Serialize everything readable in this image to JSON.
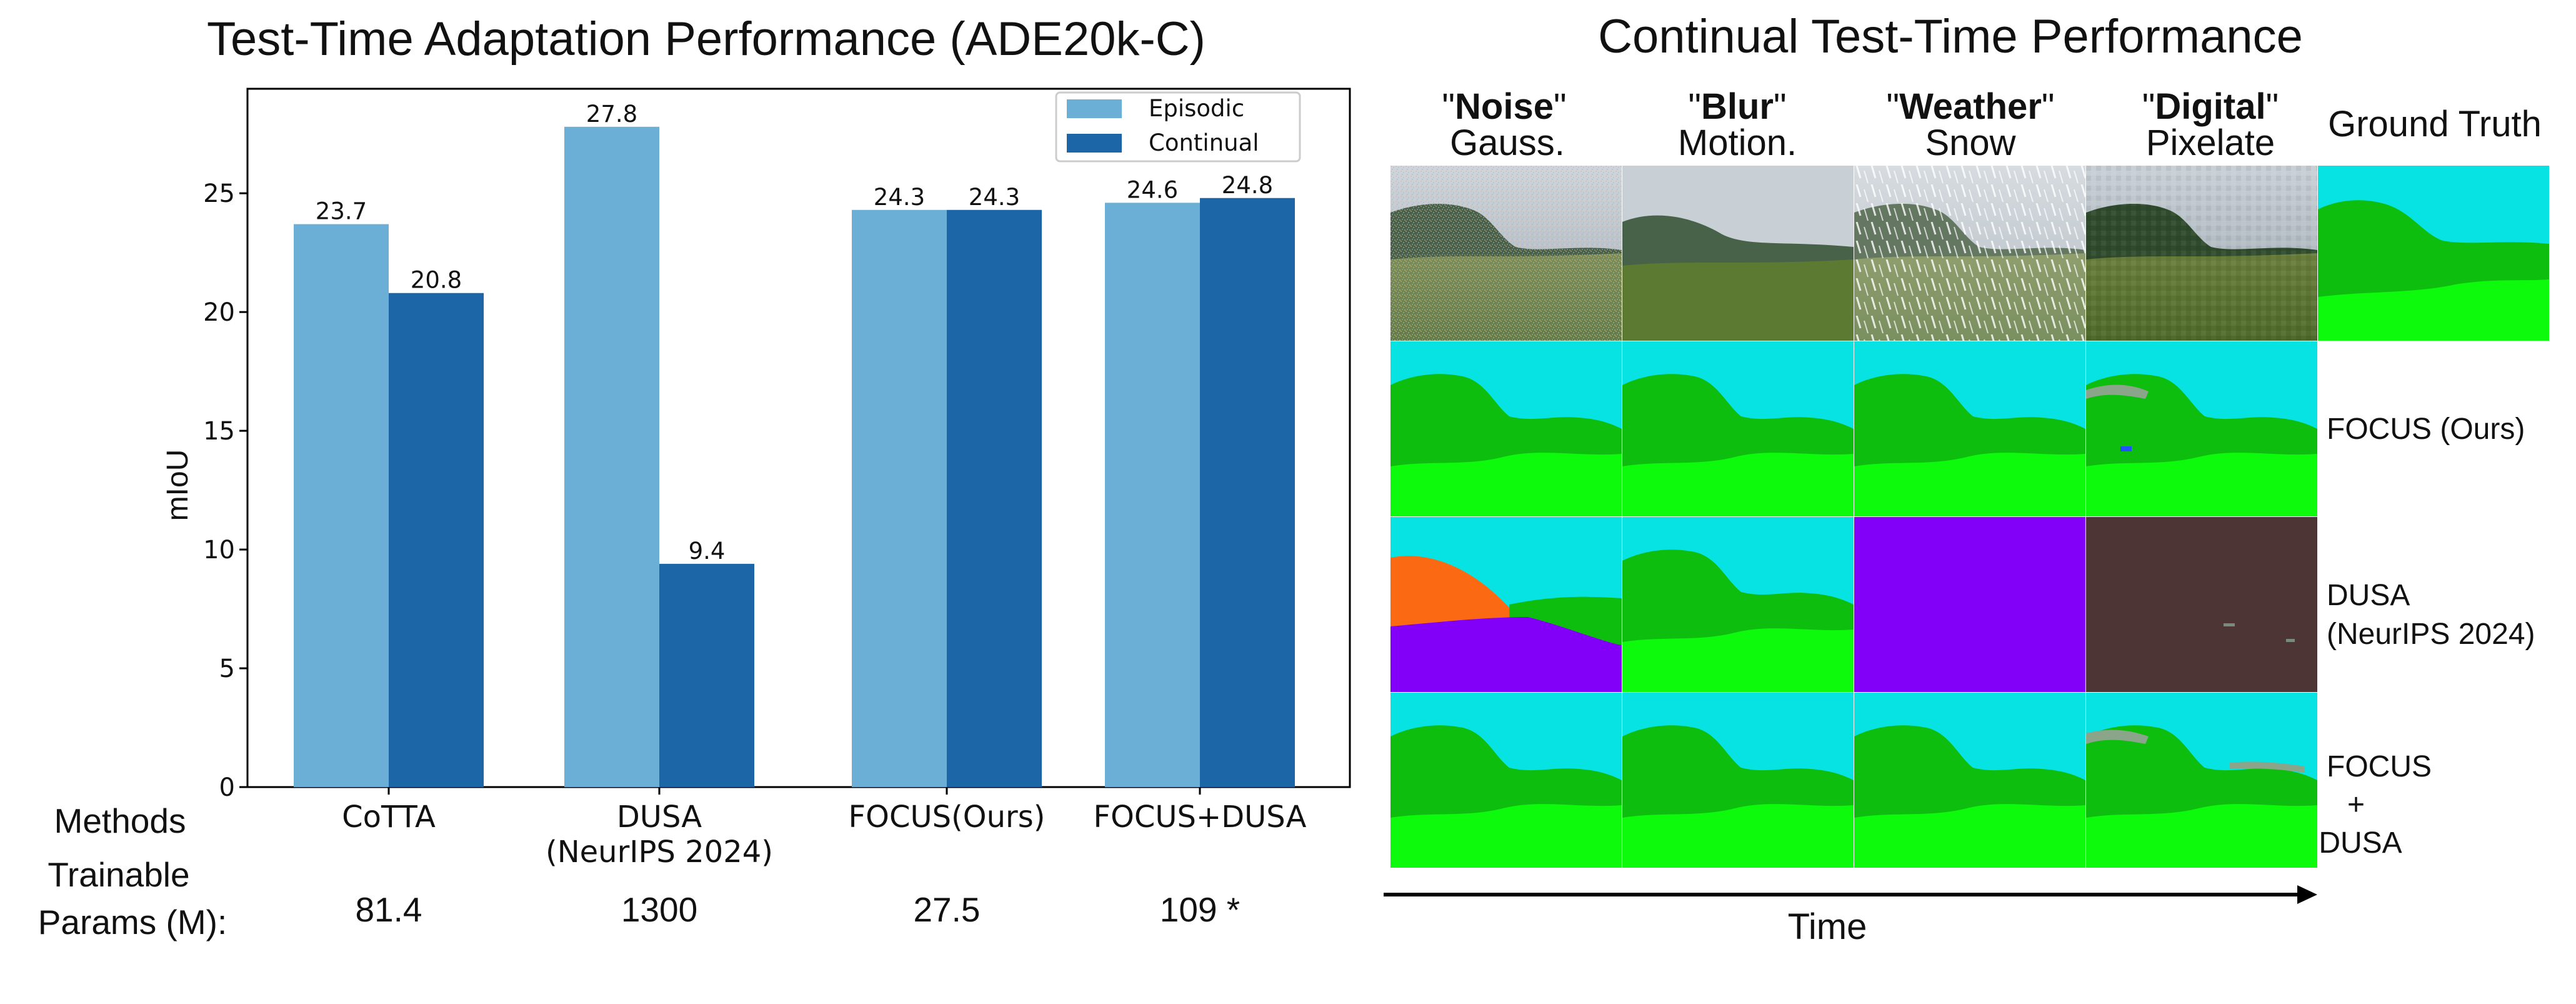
{
  "left_title": "Test-Time Adaptation Performance (ADE20k-C)",
  "right_title": "Continual Test-Time Performance",
  "chart_data": {
    "type": "bar",
    "title": "Test-Time Adaptation Performance (ADE20k-C)",
    "xlabel": "",
    "ylabel": "mIoU",
    "ylim": [
      0,
      29.4
    ],
    "yticks": [
      "0",
      "5",
      "10",
      "15",
      "20",
      "25"
    ],
    "categories": [
      "CoTTA",
      "DUSA\n(NeurIPS 2024)",
      "FOCUS(Ours)",
      "FOCUS+DUSA"
    ],
    "series": [
      {
        "name": "Episodic",
        "color": "#6baed6",
        "values": [
          23.7,
          27.8,
          24.3,
          24.6
        ],
        "labels": [
          "23.7",
          "27.8",
          "24.3",
          "24.6"
        ]
      },
      {
        "name": "Continual",
        "color": "#1c66a8",
        "values": [
          20.8,
          9.4,
          24.3,
          24.8
        ],
        "labels": [
          "20.8",
          "9.4",
          "24.3",
          "24.8"
        ]
      }
    ],
    "legend_position": "top-right"
  },
  "bottom_table": {
    "methods_label": "Methods",
    "params_label_line1": "Trainable",
    "params_label_line2": "Params (M):",
    "params": [
      "81.4",
      "1300",
      "27.5",
      "109 *"
    ]
  },
  "panel": {
    "columns": [
      {
        "quote_word": "Noise",
        "sub": "Gauss."
      },
      {
        "quote_word": "Blur",
        "sub": "Motion."
      },
      {
        "quote_word": "Weather",
        "sub": "Snow"
      },
      {
        "quote_word": "Digital",
        "sub": "Pixelate"
      }
    ],
    "ground_truth_label": "Ground Truth",
    "row_labels": [
      {
        "lines": [
          "FOCUS (Ours)"
        ]
      },
      {
        "lines": [
          "DUSA",
          "(NeurIPS 2024)"
        ]
      },
      {
        "lines": [
          "FOCUS",
          "+",
          "DUSA"
        ]
      }
    ],
    "time_label": "Time"
  },
  "colors": {
    "sky": "#07e3e3",
    "ground": "#0dfa0d",
    "trees": "#0ebe0e",
    "purple": "#8300f8",
    "brown": "#4e3535",
    "orange": "#fb6a12"
  }
}
